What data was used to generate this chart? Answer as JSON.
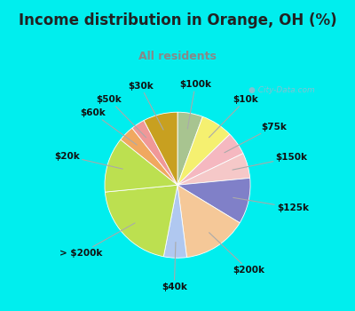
{
  "title": "Income distribution in Orange, OH (%)",
  "subtitle": "All residents",
  "bg_color": "#00EEEE",
  "chart_bg_left": "#d8f0e8",
  "chart_bg_right": "#e8f0f8",
  "title_color": "#222222",
  "subtitle_color": "#888888",
  "watermark": "City-Data.com",
  "labels": [
    "$100k",
    "$10k",
    "$75k",
    "$150k",
    "$125k",
    "$200k",
    "$40k",
    "> $200k",
    "$20k",
    "$60k",
    "$50k",
    "$30k"
  ],
  "values": [
    5.5,
    7.0,
    5.0,
    5.5,
    10.0,
    14.0,
    5.0,
    20.0,
    12.0,
    3.5,
    3.0,
    7.5
  ],
  "colors": [
    "#a8c490",
    "#f5f070",
    "#f5b8c0",
    "#f5c8c8",
    "#8080c8",
    "#f5c898",
    "#b0c8f0",
    "#bce050",
    "#bce050",
    "#f0a860",
    "#f09898",
    "#c8a020"
  ],
  "startangle": 90,
  "counterclock": false,
  "title_fontsize": 12,
  "subtitle_fontsize": 9,
  "label_fontsize": 7.5
}
